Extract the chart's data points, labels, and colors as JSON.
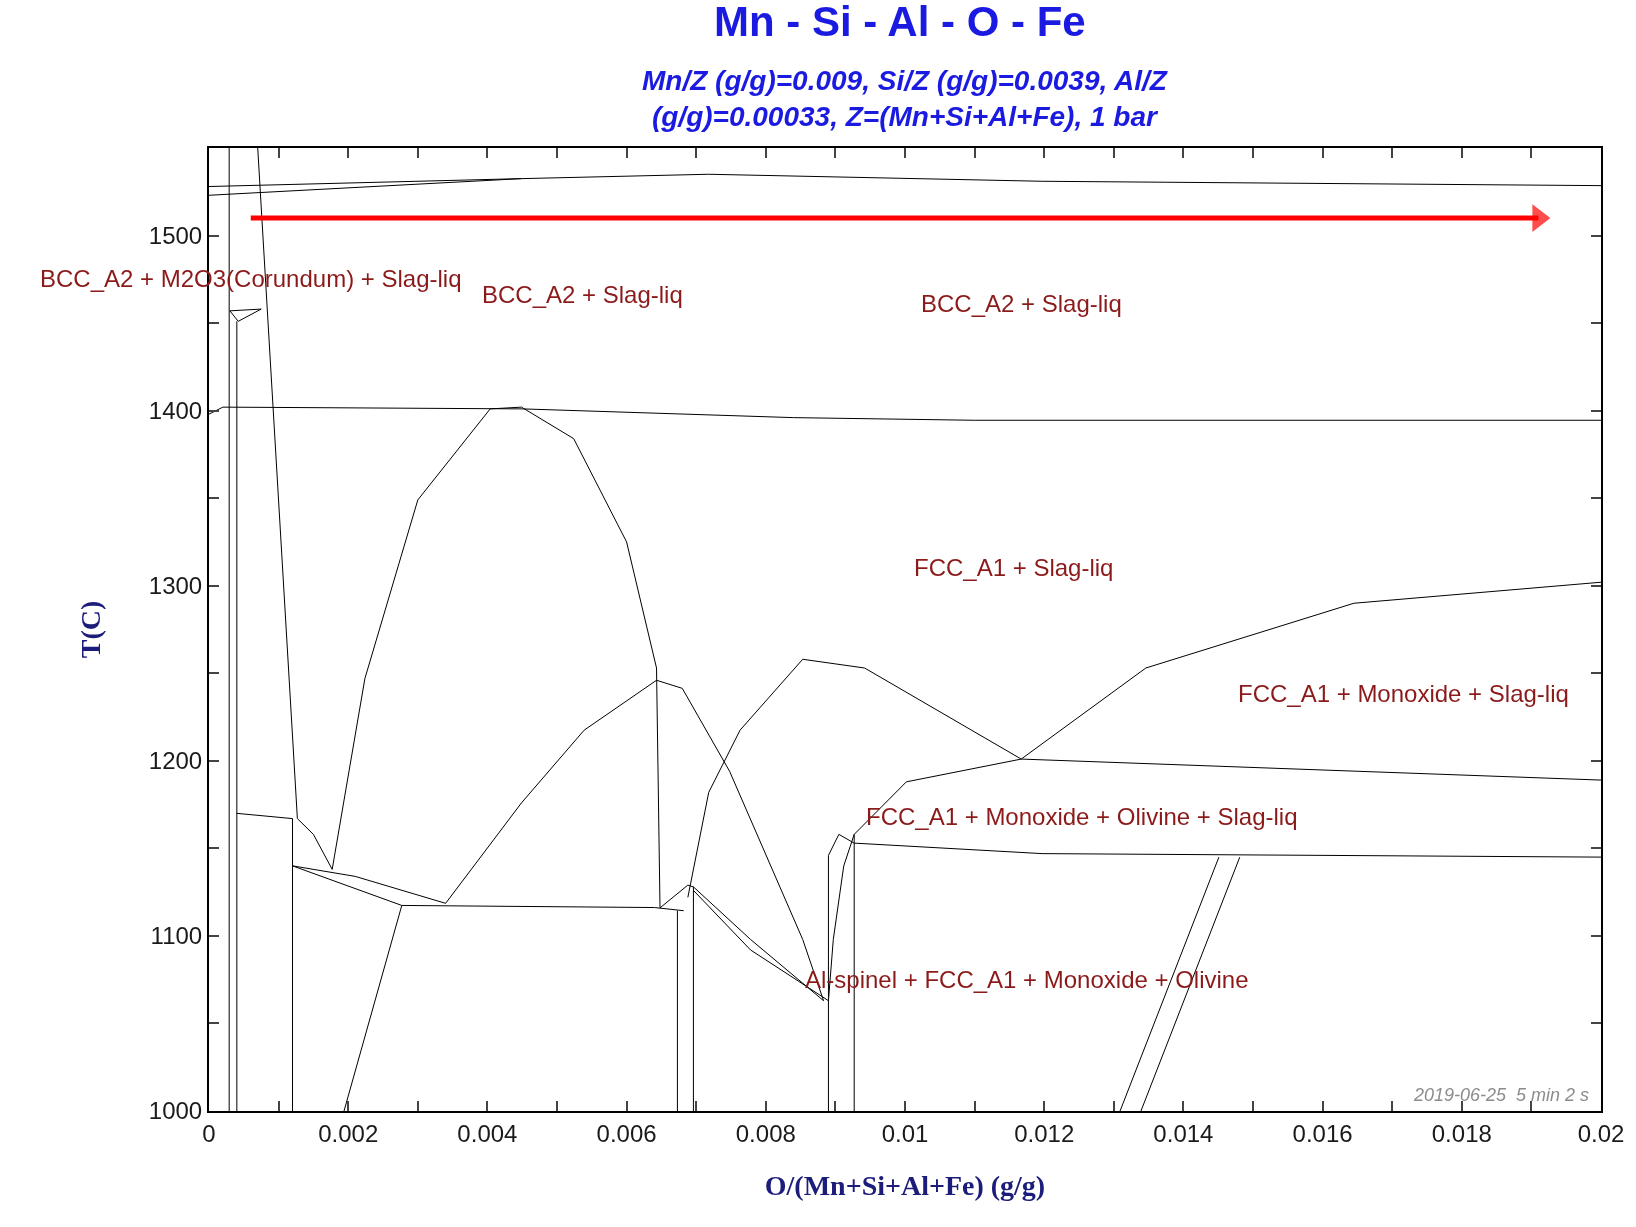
{
  "chart_data": {
    "type": "line",
    "title": "Mn - Si - Al - O - Fe",
    "subtitle": "Mn/Z (g/g)=0.009, Si/Z (g/g)=0.0039, Al/Z\n(g/g)=0.00033, Z=(Mn+Si+Al+Fe), 1 bar",
    "xlabel": "O/(Mn+Si+Al+Fe) (g/g)",
    "ylabel": "T(C)",
    "xlim": [
      0,
      0.02
    ],
    "ylim": [
      1000,
      1550
    ],
    "xticks": [
      0,
      {
        "value": 0.001,
        "label": null
      },
      0.002,
      {
        "value": 0.003,
        "label": null
      },
      0.004,
      {
        "value": 0.005,
        "label": null
      },
      0.006,
      {
        "value": 0.007,
        "label": null
      },
      0.008,
      {
        "value": 0.009,
        "label": null
      },
      0.01,
      {
        "value": 0.011,
        "label": null
      },
      0.012,
      {
        "value": 0.013,
        "label": null
      },
      0.014,
      {
        "value": 0.015,
        "label": null
      },
      0.016,
      {
        "value": 0.017,
        "label": null
      },
      0.018,
      {
        "value": 0.019,
        "label": null
      },
      0.02
    ],
    "yticks": [
      1000,
      {
        "value": 1050,
        "label": null
      },
      1100,
      {
        "value": 1150,
        "label": null
      },
      1200,
      {
        "value": 1250,
        "label": null
      },
      1300,
      {
        "value": 1350,
        "label": null
      },
      1400,
      {
        "value": 1450,
        "label": null
      },
      1500
    ],
    "marker": "none",
    "line_style": "solid",
    "annotations": [
      "BCC_A2 + M2O3(Corundum) + Slag-liq",
      "BCC_A2 + Slag-liq",
      "BCC_A2 + Slag-liq",
      "FCC_A1 + Slag-liq",
      "FCC_A1 + Monoxide + Slag-liq",
      "FCC_A1 + Monoxide + Olivine + Slag-liq",
      "Al-spinel + FCC_A1 + Monoxide + Olivine",
      "2019-06-25  5 min 2 s"
    ],
    "series": [
      {
        "color": "#000000",
        "x": [
          0,
          0.00449,
          0.00718,
          0.01197,
          0.02
        ],
        "values": [
          1528,
          1532.5,
          1535,
          1531,
          1528.5
        ]
      },
      {
        "color": "#000000",
        "x": [
          0,
          0.00449
        ],
        "values": [
          1523,
          1532.5
        ]
      },
      {
        "color": "#000000",
        "x": [
          0.00029,
          0.00029
        ],
        "values": [
          1550,
          1000
        ]
      },
      {
        "color": "#000000",
        "x": [
          0.0004,
          0.0004
        ],
        "values": [
          1451,
          1000
        ]
      },
      {
        "color": "#000000",
        "x": [
          0.0003,
          0.00042,
          0.00075
        ],
        "values": [
          1457,
          1451,
          1458
        ]
      },
      {
        "color": "#000000",
        "x": [
          0.0003,
          0.00075
        ],
        "values": [
          1457,
          1458
        ]
      },
      {
        "color": "#000000",
        "x": [
          0,
          0.0002,
          0.0045,
          0.0084,
          0.011,
          0.02
        ],
        "values": [
          1398,
          1402,
          1401,
          1396,
          1394.5,
          1394.5
        ]
      },
      {
        "color": "#000000",
        "x": [
          0.0004,
          0.0012,
          0.0012
        ],
        "values": [
          1170,
          1167,
          1000
        ]
      },
      {
        "color": "#000000",
        "x": [
          0.0012,
          0.0021,
          0.0034
        ],
        "values": [
          1140,
          1134,
          1118.6
        ]
      },
      {
        "color": "#000000",
        "x": [
          0.0012,
          0.00277,
          0.0064,
          0.00682
        ],
        "values": [
          1140,
          1117.4,
          1116.2,
          1114.4
        ]
      },
      {
        "color": "#000000",
        "x": [
          0.0007,
          0.00127,
          0.0015,
          0.00177,
          0.00224,
          0.003,
          0.00404,
          0.00449,
          0.00524,
          0.006,
          0.00643,
          0.00648
        ],
        "values": [
          1550,
          1167,
          1158,
          1138,
          1247,
          1349,
          1401,
          1402,
          1384,
          1325,
          1253,
          1116
        ]
      },
      {
        "color": "#000000",
        "x": [
          0.00277,
          0.00194
        ],
        "values": [
          1117.4,
          1000
        ]
      },
      {
        "color": "#000000",
        "x": [
          0.0034,
          0.00449,
          0.00539,
          0.00643,
          0.0068,
          0.00748,
          0.00853,
          0.00883
        ],
        "values": [
          1118.6,
          1176,
          1217.5,
          1246,
          1241.4,
          1194,
          1098,
          1063
        ]
      },
      {
        "color": "#000000",
        "x": [
          0.0089,
          0.00897,
          0.00912,
          0.00927,
          0.01002,
          0.01167,
          0.02
        ],
        "values": [
          1063,
          1098,
          1140,
          1158,
          1188,
          1201,
          1189
        ]
      },
      {
        "color": "#000000",
        "x": [
          0.00673,
          0.00673
        ],
        "values": [
          1114.4,
          1000
        ]
      },
      {
        "color": "#000000",
        "x": [
          0.00696,
          0.00696
        ],
        "values": [
          1128,
          1000
        ]
      },
      {
        "color": "#000000",
        "x": [
          0.00648,
          0.00688,
          0.00696,
          0.00778,
          0.00883
        ],
        "values": [
          1116,
          1129,
          1128,
          1098,
          1063
        ]
      },
      {
        "color": "#000000",
        "x": [
          0.00696,
          0.00778,
          0.0089
        ],
        "values": [
          1126,
          1092,
          1063
        ]
      },
      {
        "color": "#000000",
        "x": [
          0.00688,
          0.00718,
          0.00763,
          0.00853,
          0.00942,
          0.01167,
          0.01346,
          0.01645,
          0.02
        ],
        "values": [
          1122,
          1182,
          1217.5,
          1258,
          1253,
          1201,
          1253,
          1290,
          1302
        ]
      },
      {
        "color": "#000000",
        "x": [
          0.0089,
          0.0089,
          0.00905,
          0.00927,
          0.01197,
          0.02
        ],
        "values": [
          1000,
          1146,
          1158,
          1153,
          1147,
          1145
        ]
      },
      {
        "color": "#000000",
        "x": [
          0.00927,
          0.00927
        ],
        "values": [
          1158,
          1000
        ]
      },
      {
        "color": "#000000",
        "x": [
          0.01309,
          0.01451
        ],
        "values": [
          1000,
          1145
        ]
      },
      {
        "color": "#000000",
        "x": [
          0.01339,
          0.01481
        ],
        "values": [
          1000,
          1145
        ]
      },
      {
        "color": "#ff0000",
        "marker": "triangle",
        "x": [
          0.0006,
          0.0191
        ],
        "values": [
          1510,
          1510
        ]
      }
    ]
  }
}
